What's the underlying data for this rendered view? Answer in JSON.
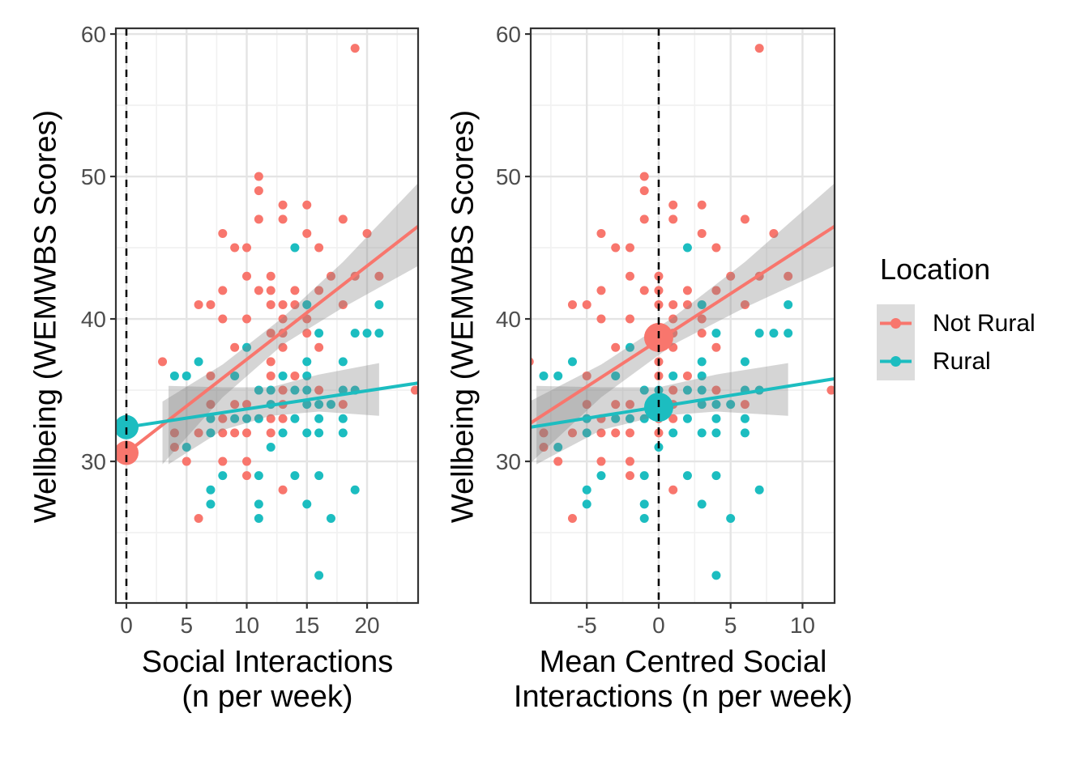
{
  "chart_data": {
    "type": "scatter",
    "description": "Two side-by-side scatter plots of wellbeing vs social interactions with linear regression lines, confidence ribbons, dashed vertical reference line at x=0, and enlarged intercept/mean points. Right panel shows the same data mean-centred (x shifted by -12).",
    "y_axis": {
      "label": "Wellbeing (WEMWBS Scores)",
      "ticks": [
        30,
        40,
        50,
        60
      ],
      "minor": [
        25,
        35,
        45,
        55
      ],
      "lim": [
        20.06,
        60.4
      ]
    },
    "groups": [
      {
        "id": 0,
        "label": "Not Rural",
        "color": "#F8766D"
      },
      {
        "id": 1,
        "label": "Rural",
        "color": "#1CBDC0"
      }
    ],
    "style": {
      "band_color": "#7F7F7F",
      "band_alpha": 0.33,
      "grid_major": "#E4E4E4",
      "grid_minor": "#F1F1F1",
      "panel_border": "#333333",
      "vline_color": "#000000",
      "tick_text": "#4D4D4D",
      "tick_mark": "#333333",
      "point_radius": 5.5,
      "line_width": 4
    },
    "points_note": "points are [social_interactions, wemwbs, group]; group 0=Not Rural, 1=Rural; right panel draws same points with x_offset",
    "points": [
      [
        19,
        59,
        0
      ],
      [
        11,
        50,
        0
      ],
      [
        11,
        49,
        0
      ],
      [
        13,
        48,
        0
      ],
      [
        15,
        48,
        0
      ],
      [
        11,
        47,
        0
      ],
      [
        13,
        47,
        0
      ],
      [
        18,
        47,
        0
      ],
      [
        8,
        46,
        0
      ],
      [
        15,
        46,
        0
      ],
      [
        20,
        46,
        0
      ],
      [
        9,
        45,
        0
      ],
      [
        10,
        45,
        0
      ],
      [
        14,
        45,
        1
      ],
      [
        16,
        45,
        0
      ],
      [
        10,
        43,
        0
      ],
      [
        12,
        43,
        0
      ],
      [
        17,
        43,
        0
      ],
      [
        19,
        43,
        0
      ],
      [
        21,
        43,
        0
      ],
      [
        8,
        42,
        0
      ],
      [
        11,
        42,
        0
      ],
      [
        12,
        42,
        0
      ],
      [
        14,
        42,
        0
      ],
      [
        16,
        42,
        0
      ],
      [
        6,
        41,
        0
      ],
      [
        7,
        41,
        0
      ],
      [
        12,
        41,
        0
      ],
      [
        13,
        41,
        0
      ],
      [
        14,
        41,
        0
      ],
      [
        15,
        41,
        1
      ],
      [
        18,
        41,
        0
      ],
      [
        21,
        41,
        1
      ],
      [
        8,
        40,
        0
      ],
      [
        10,
        40,
        0
      ],
      [
        13,
        40,
        0
      ],
      [
        15,
        40,
        0
      ],
      [
        12,
        39,
        0
      ],
      [
        13,
        39,
        0
      ],
      [
        15,
        39,
        0
      ],
      [
        16,
        39,
        1
      ],
      [
        19,
        39,
        1
      ],
      [
        20,
        39,
        1
      ],
      [
        21,
        39,
        1
      ],
      [
        9,
        38,
        0
      ],
      [
        10,
        38,
        1
      ],
      [
        13,
        38,
        0
      ],
      [
        16,
        38,
        0
      ],
      [
        3,
        37,
        0
      ],
      [
        6,
        37,
        1
      ],
      [
        12,
        37,
        0
      ],
      [
        15,
        37,
        1
      ],
      [
        18,
        37,
        1
      ],
      [
        4,
        36,
        1
      ],
      [
        5,
        36,
        1
      ],
      [
        7,
        36,
        0
      ],
      [
        9,
        36,
        1
      ],
      [
        12,
        36,
        0
      ],
      [
        13,
        36,
        1
      ],
      [
        14,
        36,
        0
      ],
      [
        15,
        36,
        1
      ],
      [
        11,
        35,
        1
      ],
      [
        12,
        35,
        1
      ],
      [
        13,
        35,
        0
      ],
      [
        14,
        35,
        1
      ],
      [
        15,
        35,
        1
      ],
      [
        16,
        35,
        0
      ],
      [
        18,
        35,
        1
      ],
      [
        19,
        35,
        1
      ],
      [
        24,
        35,
        0
      ],
      [
        7,
        34,
        0
      ],
      [
        9,
        34,
        0
      ],
      [
        10,
        34,
        0
      ],
      [
        12,
        34,
        1
      ],
      [
        13,
        34,
        0
      ],
      [
        15,
        34,
        1
      ],
      [
        16,
        34,
        1
      ],
      [
        17,
        34,
        1
      ],
      [
        18,
        34,
        0
      ],
      [
        7,
        33,
        1
      ],
      [
        8,
        33,
        0
      ],
      [
        9,
        33,
        1
      ],
      [
        10,
        33,
        1
      ],
      [
        11,
        33,
        1
      ],
      [
        12,
        33,
        0
      ],
      [
        13,
        33,
        0
      ],
      [
        14,
        33,
        1
      ],
      [
        16,
        33,
        1
      ],
      [
        18,
        33,
        1
      ],
      [
        4,
        32,
        0
      ],
      [
        6,
        32,
        0
      ],
      [
        7,
        32,
        1
      ],
      [
        8,
        32,
        0
      ],
      [
        9,
        32,
        0
      ],
      [
        10,
        32,
        0
      ],
      [
        12,
        32,
        0
      ],
      [
        13,
        32,
        1
      ],
      [
        15,
        32,
        1
      ],
      [
        16,
        32,
        1
      ],
      [
        18,
        32,
        1
      ],
      [
        4,
        31,
        0
      ],
      [
        5,
        31,
        1
      ],
      [
        12,
        31,
        1
      ],
      [
        5,
        30,
        0
      ],
      [
        8,
        30,
        0
      ],
      [
        10,
        30,
        0
      ],
      [
        8,
        29,
        1
      ],
      [
        10,
        29,
        0
      ],
      [
        11,
        29,
        1
      ],
      [
        14,
        29,
        1
      ],
      [
        16,
        29,
        1
      ],
      [
        7,
        28,
        1
      ],
      [
        13,
        28,
        0
      ],
      [
        19,
        28,
        1
      ],
      [
        7,
        27,
        1
      ],
      [
        11,
        27,
        1
      ],
      [
        15,
        27,
        1
      ],
      [
        6,
        26,
        0
      ],
      [
        11,
        26,
        1
      ],
      [
        17,
        26,
        1
      ],
      [
        16,
        22,
        1
      ]
    ],
    "bands": [
      {
        "group": 0,
        "x": [
          3,
          8,
          13,
          18,
          24.2
        ],
        "lo": [
          29.8,
          34.5,
          38.2,
          40.8,
          43.7
        ],
        "hi": [
          34.2,
          36.8,
          40.1,
          44.0,
          49.5
        ]
      },
      {
        "group": 1,
        "x": [
          3.5,
          8,
          12,
          16,
          21
        ],
        "lo": [
          29.8,
          32.2,
          33.2,
          33.5,
          33.2
        ],
        "hi": [
          35.3,
          35.2,
          35.2,
          36.1,
          36.9
        ]
      }
    ],
    "panels": [
      {
        "id": "left",
        "xlabel_line1": "Social Interactions",
        "xlabel_line2": "(n per week)",
        "xticks": [
          0,
          5,
          10,
          15,
          20
        ],
        "xminor": [
          2.5,
          7.5,
          12.5,
          17.5,
          22.5
        ],
        "xlim": [
          -0.875,
          24.24
        ],
        "x_offset": 0,
        "vline": 0,
        "lines": [
          {
            "group": 0,
            "x": [
              0,
              24.24
            ],
            "y": [
              30.6,
              46.5
            ]
          },
          {
            "group": 1,
            "x": [
              0,
              24.24
            ],
            "y": [
              32.4,
              35.5
            ]
          }
        ],
        "big_points": [
          {
            "x": 0,
            "y": 30.6,
            "group": 0,
            "r": 15
          },
          {
            "x": 0,
            "y": 32.4,
            "group": 1,
            "r": 15
          }
        ]
      },
      {
        "id": "right",
        "xlabel_line1": "Mean Centred Social",
        "xlabel_line2": "Interactions (n per week)",
        "xticks": [
          -5,
          0,
          5,
          10
        ],
        "xminor": [
          -7.5,
          -2.5,
          2.5,
          7.5
        ],
        "xlim": [
          -8.9,
          12.23
        ],
        "x_offset": -12,
        "vline": 0,
        "lines": [
          {
            "group": 0,
            "x": [
              -8.9,
              12.23
            ],
            "y": [
              32.7,
              46.5
            ]
          },
          {
            "group": 1,
            "x": [
              -8.9,
              12.23
            ],
            "y": [
              32.4,
              35.8
            ]
          }
        ],
        "big_points": [
          {
            "x": 0,
            "y": 38.7,
            "group": 0,
            "r": 18
          },
          {
            "x": 0,
            "y": 33.8,
            "group": 1,
            "r": 18
          }
        ]
      }
    ]
  },
  "legend": {
    "title": "Location",
    "key_bg": "#DCDCDC",
    "items": [
      {
        "label": "Not Rural",
        "color": "#F8766D"
      },
      {
        "label": "Rural",
        "color": "#1CBDC0"
      }
    ]
  }
}
